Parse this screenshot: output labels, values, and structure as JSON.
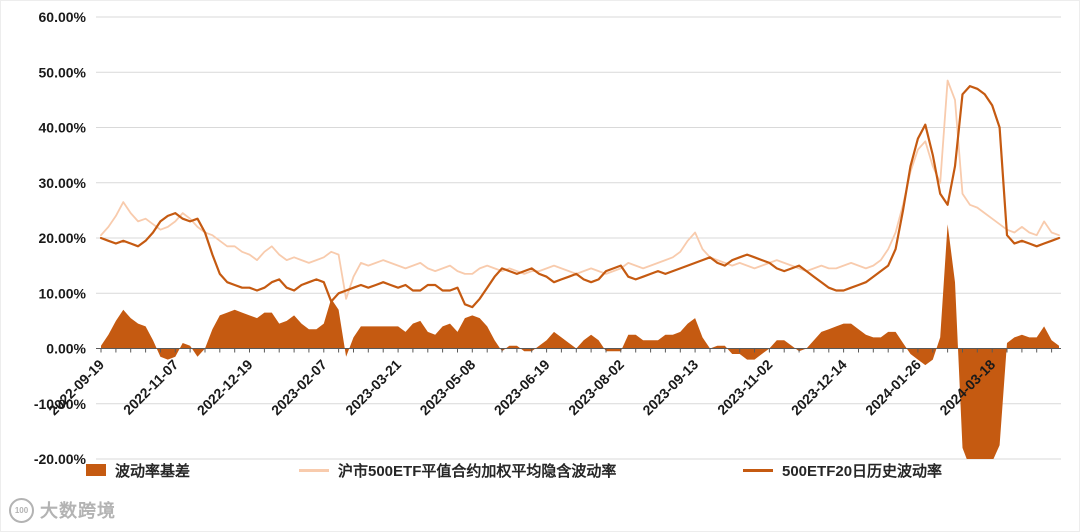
{
  "watermark": {
    "logo_text": "100",
    "text": "大数跨境"
  },
  "chart_data": {
    "type": "line+area",
    "title": "",
    "xlabel": "",
    "ylabel": "",
    "grid": true,
    "legend_position": "bottom",
    "y_axis": {
      "min": -20,
      "max": 60,
      "step": 10,
      "unit": "%",
      "tick_labels": [
        "60.00%",
        "50.00%",
        "40.00%",
        "30.00%",
        "20.00%",
        "10.00%",
        "0.00%",
        "-10.00%",
        "-20.00%"
      ]
    },
    "x_tick_labels": [
      "2022-09-19",
      "2022-11-07",
      "2022-12-19",
      "2023-02-07",
      "2023-03-21",
      "2023-05-08",
      "2023-06-19",
      "2023-08-02",
      "2023-09-13",
      "2023-11-02",
      "2023-12-14",
      "2024-01-26",
      "2024-03-18"
    ],
    "x_tick_indices": [
      0,
      10,
      20,
      30,
      40,
      50,
      60,
      70,
      80,
      90,
      100,
      110,
      120
    ],
    "n_points": 130,
    "series": [
      {
        "name": "波动率基差",
        "type": "area",
        "color": "#C55A11",
        "values": [
          0.5,
          2.5,
          5.0,
          7.0,
          5.5,
          4.5,
          4.0,
          1.5,
          -1.5,
          -2.0,
          -1.5,
          1.0,
          0.5,
          -1.5,
          0.0,
          3.5,
          6.0,
          6.5,
          7.0,
          6.5,
          6.0,
          5.5,
          6.5,
          6.5,
          4.5,
          5.0,
          6.0,
          4.5,
          3.5,
          3.5,
          4.5,
          9.0,
          7.0,
          -1.5,
          2.0,
          4.0,
          4.0,
          4.0,
          4.0,
          4.0,
          4.0,
          3.0,
          4.5,
          5.0,
          3.0,
          2.5,
          4.0,
          4.5,
          3.0,
          5.5,
          6.0,
          5.5,
          4.0,
          1.5,
          -0.5,
          0.5,
          0.5,
          -0.5,
          -0.5,
          0.5,
          1.5,
          3.0,
          2.0,
          1.0,
          0.0,
          1.5,
          2.5,
          1.5,
          -0.5,
          -0.5,
          -0.5,
          2.5,
          2.5,
          1.5,
          1.5,
          1.5,
          2.5,
          2.5,
          3.0,
          4.5,
          5.5,
          2.0,
          0.0,
          0.5,
          0.5,
          -1.0,
          -1.0,
          -2.0,
          -2.0,
          -1.0,
          0.0,
          1.5,
          1.5,
          0.5,
          -0.5,
          0.0,
          1.5,
          3.0,
          3.5,
          4.0,
          4.5,
          4.5,
          3.5,
          2.5,
          2.0,
          2.0,
          3.0,
          3.0,
          1.0,
          -1.0,
          -2.0,
          -3.0,
          -2.0,
          2.0,
          22.5,
          12.0,
          -18.0,
          -21.5,
          -21.5,
          -21.5,
          -20.5,
          -17.5,
          1.0,
          2.0,
          2.5,
          2.0,
          2.0,
          4.0,
          1.5,
          0.5
        ]
      },
      {
        "name": "沪市500ETF平值合约加权平均隐含波动率",
        "type": "line",
        "color": "#F8CBAD",
        "values": [
          20.5,
          22.0,
          24.0,
          26.5,
          24.5,
          23.0,
          23.5,
          22.5,
          21.5,
          22.0,
          23.0,
          24.5,
          23.5,
          22.0,
          21.0,
          20.5,
          19.5,
          18.5,
          18.5,
          17.5,
          17.0,
          16.0,
          17.5,
          18.5,
          17.0,
          16.0,
          16.5,
          16.0,
          15.5,
          16.0,
          16.5,
          17.5,
          17.0,
          9.0,
          13.0,
          15.5,
          15.0,
          15.5,
          16.0,
          15.5,
          15.0,
          14.5,
          15.0,
          15.5,
          14.5,
          14.0,
          14.5,
          15.0,
          14.0,
          13.5,
          13.5,
          14.5,
          15.0,
          14.5,
          14.0,
          14.5,
          14.0,
          13.5,
          14.0,
          14.0,
          14.5,
          15.0,
          14.5,
          14.0,
          13.5,
          14.0,
          14.5,
          14.0,
          13.5,
          14.0,
          14.5,
          15.5,
          15.0,
          14.5,
          15.0,
          15.5,
          16.0,
          16.5,
          17.5,
          19.5,
          21.0,
          18.0,
          16.5,
          16.0,
          15.5,
          15.0,
          15.5,
          15.0,
          14.5,
          15.0,
          15.5,
          16.0,
          15.5,
          15.0,
          14.5,
          14.0,
          14.5,
          15.0,
          14.5,
          14.5,
          15.0,
          15.5,
          15.0,
          14.5,
          15.0,
          16.0,
          18.0,
          21.0,
          26.0,
          32.0,
          36.0,
          37.5,
          33.0,
          30.0,
          48.5,
          45.0,
          28.0,
          26.0,
          25.5,
          24.5,
          23.5,
          22.5,
          21.5,
          21.0,
          22.0,
          21.0,
          20.5,
          23.0,
          21.0,
          20.5
        ]
      },
      {
        "name": "500ETF20日历史波动率",
        "type": "line",
        "color": "#C55A11",
        "values": [
          20.0,
          19.5,
          19.0,
          19.5,
          19.0,
          18.5,
          19.5,
          21.0,
          23.0,
          24.0,
          24.5,
          23.5,
          23.0,
          23.5,
          21.0,
          17.0,
          13.5,
          12.0,
          11.5,
          11.0,
          11.0,
          10.5,
          11.0,
          12.0,
          12.5,
          11.0,
          10.5,
          11.5,
          12.0,
          12.5,
          12.0,
          8.5,
          10.0,
          10.5,
          11.0,
          11.5,
          11.0,
          11.5,
          12.0,
          11.5,
          11.0,
          11.5,
          10.5,
          10.5,
          11.5,
          11.5,
          10.5,
          10.5,
          11.0,
          8.0,
          7.5,
          9.0,
          11.0,
          13.0,
          14.5,
          14.0,
          13.5,
          14.0,
          14.5,
          13.5,
          13.0,
          12.0,
          12.5,
          13.0,
          13.5,
          12.5,
          12.0,
          12.5,
          14.0,
          14.5,
          15.0,
          13.0,
          12.5,
          13.0,
          13.5,
          14.0,
          13.5,
          14.0,
          14.5,
          15.0,
          15.5,
          16.0,
          16.5,
          15.5,
          15.0,
          16.0,
          16.5,
          17.0,
          16.5,
          16.0,
          15.5,
          14.5,
          14.0,
          14.5,
          15.0,
          14.0,
          13.0,
          12.0,
          11.0,
          10.5,
          10.5,
          11.0,
          11.5,
          12.0,
          13.0,
          14.0,
          15.0,
          18.0,
          25.0,
          33.0,
          38.0,
          40.5,
          35.0,
          28.0,
          26.0,
          33.0,
          46.0,
          47.5,
          47.0,
          46.0,
          44.0,
          40.0,
          20.5,
          19.0,
          19.5,
          19.0,
          18.5,
          19.0,
          19.5,
          20.0
        ]
      }
    ]
  }
}
